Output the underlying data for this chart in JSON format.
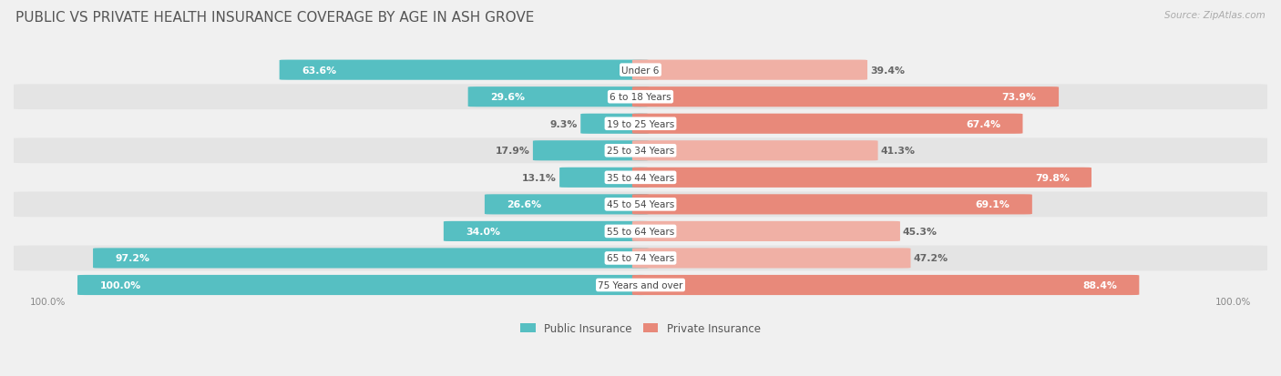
{
  "title": "PUBLIC VS PRIVATE HEALTH INSURANCE COVERAGE BY AGE IN ASH GROVE",
  "source": "Source: ZipAtlas.com",
  "categories": [
    "Under 6",
    "6 to 18 Years",
    "19 to 25 Years",
    "25 to 34 Years",
    "35 to 44 Years",
    "45 to 54 Years",
    "55 to 64 Years",
    "65 to 74 Years",
    "75 Years and over"
  ],
  "public_values": [
    63.6,
    29.6,
    9.3,
    17.9,
    13.1,
    26.6,
    34.0,
    97.2,
    100.0
  ],
  "private_values": [
    39.4,
    73.9,
    67.4,
    41.3,
    79.8,
    69.1,
    45.3,
    47.2,
    88.4
  ],
  "public_color": "#56bfc2",
  "private_color": "#e8897a",
  "private_color_light": "#f0b0a5",
  "row_bg_color_odd": "#f0f0f0",
  "row_bg_color_even": "#e4e4e4",
  "label_color_dark": "#666666",
  "label_color_white": "#ffffff",
  "figsize": [
    14.06,
    4.14
  ],
  "dpi": 100,
  "max_val": 100.0,
  "legend_labels": [
    "Public Insurance",
    "Private Insurance"
  ]
}
